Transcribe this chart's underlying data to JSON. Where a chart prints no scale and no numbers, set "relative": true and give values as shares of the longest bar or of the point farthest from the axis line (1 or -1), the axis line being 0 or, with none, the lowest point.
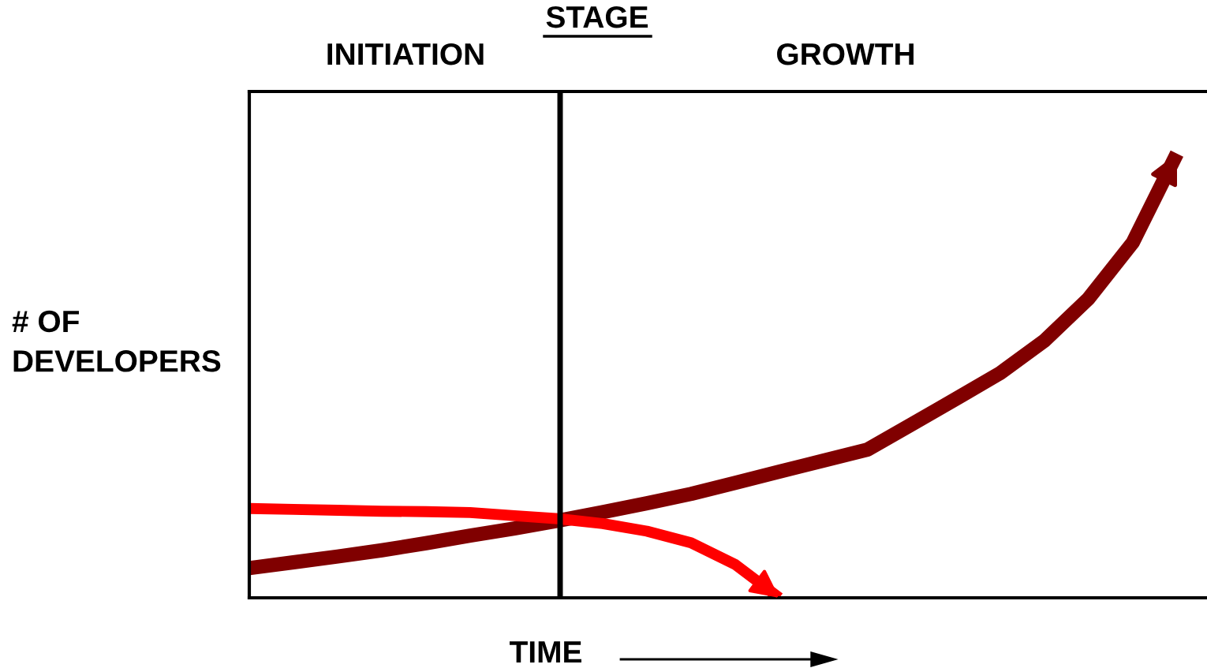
{
  "chart_data": {
    "type": "line",
    "relative": true,
    "title": "STAGE",
    "xlabel": "TIME",
    "ylabel": "# OF\nDEVELOPERS",
    "annotations": [
      "INITIATION",
      "GROWTH"
    ],
    "categories": [
      null,
      null,
      null,
      null,
      null,
      null,
      null,
      null,
      null,
      null,
      null,
      null,
      null,
      null,
      null,
      null,
      null,
      null,
      null,
      null,
      null,
      null
    ],
    "series": [
      {
        "color": "#800000",
        "values": [
          0.067,
          0.08,
          0.093,
          0.107,
          0.123,
          0.14,
          0.156,
          0.174,
          0.193,
          0.213,
          0.234,
          0.259,
          0.284,
          0.309,
          0.334,
          0.391,
          0.448,
          0.506,
          0.579,
          0.674,
          0.8,
          1.0
        ]
      },
      {
        "color": "#ff0000",
        "values": [
          0.201,
          0.199,
          0.197,
          0.195,
          0.194,
          0.192,
          0.185,
          0.178,
          0.167,
          0.15,
          0.124,
          0.075,
          0.0,
          null,
          null,
          null,
          null,
          null,
          null,
          null,
          null,
          null
        ]
      }
    ]
  }
}
